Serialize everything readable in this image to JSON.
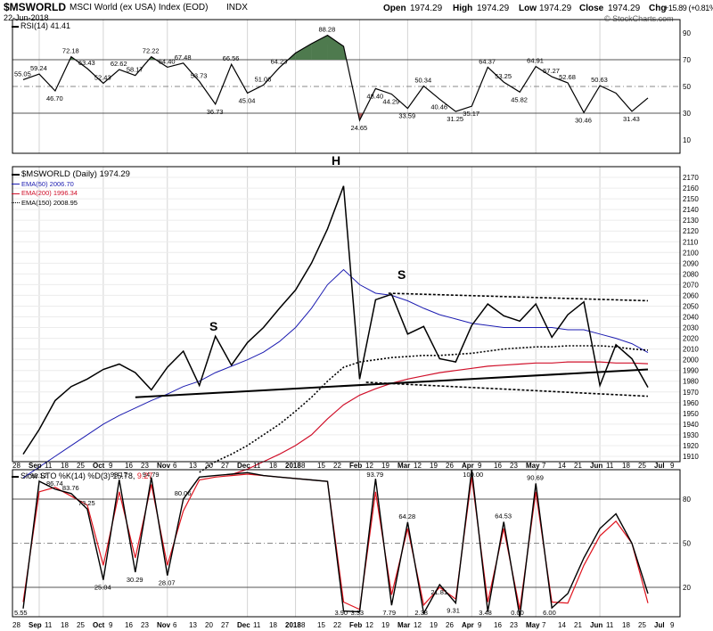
{
  "header": {
    "symbol": "$MSWORLD",
    "name": "MSCI World (ex USA) Index (EOD)",
    "exchange": "INDX",
    "date": "22-Jun-2018",
    "open_label": "Open",
    "open": "1974.29",
    "high_label": "High",
    "high": "1974.29",
    "low_label": "Low",
    "low": "1974.29",
    "close_label": "Close",
    "close": "1974.29",
    "chg_label": "Chg",
    "chg": "+15.89 (+0.81%)",
    "watermark": "© StockCharts.com"
  },
  "colors": {
    "price": "#000000",
    "ema50": "#1b1bb0",
    "ema200": "#d0102a",
    "ema150": "#000000",
    "rsi_overbought_fill": "#4e7a4e",
    "rsi_oversold_fill": "#b06060",
    "sto_d": "#e0141e",
    "grid": "#d4d4d4"
  },
  "rsi_panel": {
    "label": "RSI(14) 41.41",
    "axis_ticks": [
      "90",
      "70",
      "50",
      "30",
      "10"
    ],
    "annotations": [
      "55.05",
      "59.24",
      "46.70",
      "72.18",
      "63.43",
      "52.43",
      "62.62",
      "58.17",
      "72.22",
      "64.40",
      "67.48",
      "53.73",
      "36.73",
      "66.56",
      "45.04",
      "51.06",
      "64.23",
      "88.28",
      "24.65",
      "48.40",
      "44.29",
      "33.59",
      "50.34",
      "40.46",
      "31.25",
      "35.17",
      "64.37",
      "53.25",
      "45.82",
      "64.91",
      "57.27",
      "52.68",
      "30.46",
      "50.63",
      "31.43"
    ]
  },
  "price_panel": {
    "legend": {
      "main": "$MSWORLD (Daily) 1974.29",
      "ema50": "EMA(50) 2006.70",
      "ema200": "EMA(200) 1996.34",
      "ema150": "EMA(150) 2008.95"
    },
    "pattern_labels": {
      "left_shoulder": "S",
      "head": "H",
      "right_shoulder": "S"
    },
    "axis_ticks": [
      "2170",
      "2160",
      "2150",
      "2140",
      "2130",
      "2120",
      "2110",
      "2100",
      "2090",
      "2080",
      "2070",
      "2060",
      "2050",
      "2040",
      "2030",
      "2020",
      "2010",
      "2000",
      "1990",
      "1980",
      "1970",
      "1960",
      "1950",
      "1940",
      "1930",
      "1920",
      "1910"
    ]
  },
  "x_axis_labels": [
    "28",
    "Sep",
    "11",
    "18",
    "25",
    "Oct",
    "9",
    "16",
    "23",
    "Nov",
    "6",
    "13",
    "20",
    "27",
    "Dec",
    "11",
    "18",
    "2018",
    "8",
    "15",
    "22",
    "Feb",
    "12",
    "19",
    "Mar",
    "12",
    "19",
    "26",
    "Apr",
    "9",
    "16",
    "23",
    "May",
    "7",
    "14",
    "21",
    "Jun",
    "11",
    "18",
    "25",
    "Jul",
    "9"
  ],
  "sto_panel": {
    "label_main": "Slow STO %K(14) %D(3) 15.78,",
    "label_d": "9.27",
    "axis_ticks": [
      "80",
      "50",
      "20"
    ],
    "annotations": [
      "5.55",
      "92.12",
      "86.74",
      "83.76",
      "73.25",
      "25.04",
      "93.17",
      "30.29",
      "94.79",
      "28.07",
      "80.06",
      "3.90",
      "3.33",
      "93.79",
      "7.79",
      "64.28",
      "2.38",
      "21.81",
      "9.31",
      "100.00",
      "3.48",
      "64.53",
      "0.00",
      "90.69",
      "6.00"
    ]
  },
  "chart_data": [
    {
      "type": "line",
      "title": "$MSWORLD (Daily) 1974.29",
      "x": [
        "28 Aug",
        "Sep",
        "11",
        "18",
        "25",
        "Oct",
        "9",
        "16",
        "23",
        "Nov",
        "6",
        "13",
        "20",
        "27",
        "Dec",
        "11",
        "18",
        "2018",
        "8",
        "15",
        "22",
        "Feb",
        "12",
        "19",
        "Mar",
        "12",
        "19",
        "26",
        "Apr",
        "9",
        "16",
        "23",
        "May",
        "7",
        "14",
        "21",
        "Jun",
        "11",
        "18",
        "25 Jun"
      ],
      "series": [
        {
          "name": "$MSWORLD",
          "values": [
            1912,
            1935,
            1962,
            1975,
            1982,
            1991,
            1996,
            1988,
            1972,
            1993,
            2008,
            1976,
            2022,
            1995,
            2016,
            2030,
            2048,
            2065,
            2090,
            2122,
            2162,
            1982,
            2056,
            2061,
            2024,
            2031,
            2001,
            1998,
            2032,
            2052,
            2041,
            2036,
            2052,
            2021,
            2042,
            2054,
            1976,
            2014,
            2001,
            1974.29
          ]
        },
        {
          "name": "EMA(50)",
          "values": [
            1890,
            1900,
            1910,
            1920,
            1930,
            1940,
            1948,
            1955,
            1962,
            1968,
            1975,
            1980,
            1988,
            1994,
            2000,
            2007,
            2017,
            2030,
            2048,
            2070,
            2084,
            2070,
            2062,
            2060,
            2055,
            2048,
            2042,
            2038,
            2034,
            2032,
            2030,
            2030,
            2030,
            2030,
            2028,
            2028,
            2024,
            2020,
            2015,
            2006.7
          ]
        },
        {
          "name": "EMA(200)",
          "values": [
            null,
            null,
            null,
            null,
            null,
            null,
            null,
            null,
            null,
            null,
            null,
            null,
            null,
            1893,
            1898,
            1905,
            1912,
            1920,
            1930,
            1945,
            1958,
            1967,
            1973,
            1978,
            1982,
            1985,
            1988,
            1990,
            1992,
            1994,
            1995,
            1996,
            1997,
            1997,
            1998,
            1998,
            1998,
            1997,
            1997,
            1996.34
          ]
        },
        {
          "name": "EMA(150)",
          "values": [
            null,
            null,
            null,
            null,
            null,
            null,
            null,
            null,
            null,
            null,
            null,
            1895,
            1905,
            1912,
            1920,
            1930,
            1940,
            1952,
            1965,
            1980,
            1993,
            1998,
            2000,
            2002,
            2003,
            2004,
            2004,
            2005,
            2006,
            2008,
            2010,
            2011,
            2012,
            2012,
            2013,
            2013,
            2013,
            2012,
            2010,
            2008.95
          ]
        }
      ],
      "trendlines": [
        {
          "from": [
            "Oct 16",
            1965
          ],
          "to": [
            "Jun 25",
            1991
          ]
        },
        {
          "from": [
            "Feb 26",
            2062
          ],
          "to": [
            "Jun 25",
            2055
          ]
        },
        {
          "from": [
            "Feb 5",
            1979
          ],
          "to": [
            "Jun 25",
            1966
          ]
        }
      ],
      "ylim": [
        1905,
        2180
      ],
      "grid": true,
      "legend": "top-left"
    },
    {
      "type": "line",
      "title": "RSI(14) 41.41",
      "x": [
        "28 Aug",
        "Sep",
        "11",
        "18",
        "25",
        "Oct",
        "9",
        "16",
        "23",
        "Nov",
        "6",
        "13",
        "20",
        "27",
        "Dec",
        "11",
        "18",
        "2018",
        "8",
        "15",
        "22",
        "Feb",
        "12",
        "19",
        "Mar",
        "12",
        "19",
        "26",
        "Apr",
        "9",
        "16",
        "23",
        "May",
        "7",
        "14",
        "21",
        "Jun",
        "11",
        "18",
        "25 Jun"
      ],
      "series": [
        {
          "name": "RSI(14)",
          "values": [
            55.05,
            59.24,
            46.7,
            72.18,
            63.43,
            52.43,
            62.62,
            58.17,
            72.22,
            64.4,
            67.48,
            53.73,
            36.73,
            66.56,
            45.04,
            51.06,
            64.23,
            75,
            82,
            88.28,
            80,
            24.65,
            48.4,
            44.29,
            33.59,
            50.34,
            40.46,
            31.25,
            35.17,
            64.37,
            53.25,
            45.82,
            64.91,
            57.27,
            52.68,
            30.46,
            50.63,
            45,
            31.43,
            41.41
          ]
        }
      ],
      "ylim": [
        0,
        100
      ],
      "reference_lines": [
        70,
        50,
        30
      ]
    },
    {
      "type": "line",
      "title": "Slow STO %K(14) %D(3)",
      "x": [
        "28 Aug",
        "Sep",
        "11",
        "18",
        "25",
        "Oct",
        "9",
        "16",
        "23",
        "Nov",
        "6",
        "13",
        "20",
        "27",
        "Dec",
        "11",
        "18",
        "2018",
        "8",
        "15",
        "22",
        "Feb",
        "12",
        "19",
        "Mar",
        "12",
        "19",
        "26",
        "Apr",
        "9",
        "16",
        "23",
        "May",
        "7",
        "14",
        "21",
        "Jun",
        "11",
        "18",
        "25 Jun"
      ],
      "series": [
        {
          "name": "%K(14)",
          "values": [
            5.55,
            92.12,
            86.74,
            83.76,
            73.25,
            25.04,
            93.17,
            30.29,
            94.79,
            28.07,
            80.06,
            95,
            96,
            97,
            98,
            96,
            95,
            94,
            93,
            92,
            3.9,
            3.33,
            93.79,
            7.79,
            64.28,
            2.38,
            21.81,
            9.31,
            100.0,
            3.48,
            64.53,
            0.0,
            90.69,
            6.0,
            15.78,
            40,
            60,
            70,
            50,
            15.78
          ]
        },
        {
          "name": "%D(3)",
          "values": [
            10,
            85,
            88,
            82,
            76,
            35,
            85,
            40,
            90,
            35,
            72,
            93,
            95,
            96,
            97,
            96,
            95,
            94,
            93,
            92,
            10,
            5,
            85,
            15,
            60,
            8,
            20,
            12,
            95,
            10,
            60,
            5,
            85,
            10,
            9.27,
            35,
            55,
            65,
            50,
            9.27
          ]
        }
      ],
      "ylim": [
        0,
        100
      ],
      "reference_lines": [
        80,
        50,
        20
      ]
    }
  ]
}
